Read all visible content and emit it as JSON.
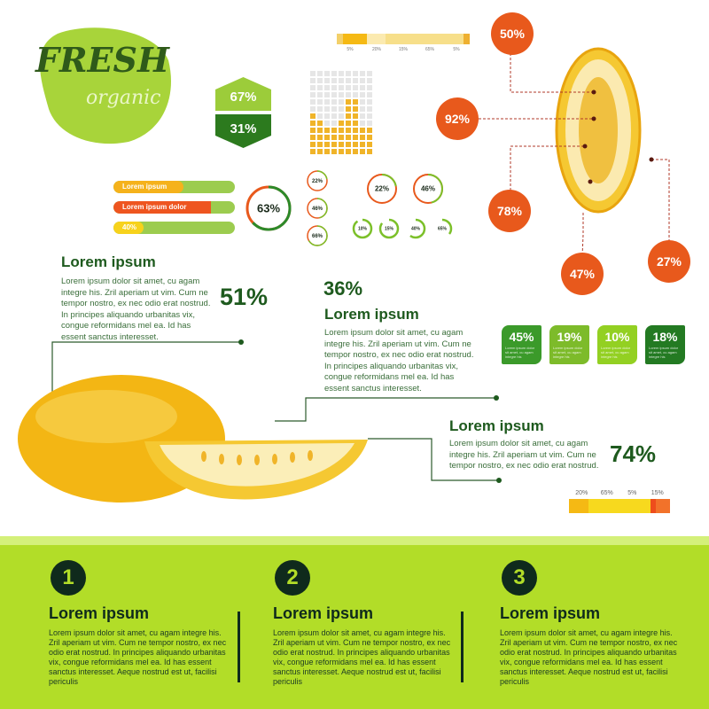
{
  "logo": {
    "title": "FRESH",
    "subtitle": "organic"
  },
  "top_bar": {
    "segments": [
      {
        "label": "5%",
        "value": 5,
        "color": "#f3d06a"
      },
      {
        "label": "20%",
        "value": 20,
        "color": "#f5b914"
      },
      {
        "label": "15%",
        "value": 15,
        "color": "#fbeab0"
      },
      {
        "label": "65%",
        "value": 65,
        "color": "#f7df8a"
      },
      {
        "label": "5%",
        "value": 5,
        "color": "#eeb031"
      }
    ]
  },
  "hexagon": {
    "top": "67%",
    "bottom": "31%"
  },
  "waffle": {
    "column_heights": [
      6,
      5,
      4,
      4,
      5,
      8,
      8,
      4,
      4
    ],
    "rows": 12,
    "color": "#f0b429",
    "empty": "#e6e6e6"
  },
  "bars": [
    {
      "label": "Lorem ipsum",
      "value": 58,
      "color": "#f5b21c"
    },
    {
      "label": "Lorem ipsum dolor",
      "value": 80,
      "color": "#ee5520"
    },
    {
      "label": "40%",
      "value": 25,
      "color": "#f7d21c"
    }
  ],
  "rings": {
    "big": {
      "label": "63%",
      "value": 63
    },
    "small_col": [
      {
        "label": "22%",
        "value": 22
      },
      {
        "label": "46%",
        "value": 46
      },
      {
        "label": "66%",
        "value": 66
      }
    ],
    "medium": [
      {
        "label": "22%",
        "value": 22
      },
      {
        "label": "46%",
        "value": 46
      }
    ],
    "small_row": [
      {
        "label": "10%",
        "value": 10
      },
      {
        "label": "15%",
        "value": 15
      },
      {
        "label": "40%",
        "value": 40
      },
      {
        "label": "65%",
        "value": 65
      }
    ]
  },
  "melon_callouts": [
    "50%",
    "92%",
    "78%",
    "47%",
    "27%"
  ],
  "section1": {
    "title": "Lorem ipsum",
    "text": "Lorem ipsum dolor sit amet, cu agam integre his. Zril aperiam ut vim. Cum ne tempor nostro, ex nec odio erat nostrud. In principes aliquando urbanitas vix, congue reformidans mel ea. Id has essent sanctus interesset.",
    "pct": "51%"
  },
  "section2": {
    "pct": "36%",
    "title": "Lorem ipsum",
    "text": "Lorem ipsum dolor sit amet, cu agam integre his. Zril aperiam ut vim. Cum ne tempor nostro, ex nec odio erat nostrud. In principes aliquando urbanitas vix, congue reformidans mel ea. Id has essent sanctus interesset."
  },
  "tags": [
    {
      "value": "45%",
      "text": "Lorem ipsum dolor sit amet, cu agam integre his",
      "color": "#3b9a2a"
    },
    {
      "value": "19%",
      "text": "Lorem ipsum dolor sit amet, cu agam integre his",
      "color": "#7dbb2a"
    },
    {
      "value": "10%",
      "text": "Lorem ipsum dolor sit amet, cu agam integre his",
      "color": "#93d022"
    },
    {
      "value": "18%",
      "text": "Lorem ipsum dolor sit amet, cu agam integre his",
      "color": "#237a22"
    }
  ],
  "section3": {
    "title": "Lorem ipsum",
    "text": "Lorem ipsum dolor sit amet, cu agam integre his. Zril aperiam ut vim. Cum ne tempor nostro, ex nec odio erat nostrud.",
    "pct": "74%"
  },
  "bottom_bar": {
    "segments": [
      {
        "label": "20%",
        "value": 20,
        "color": "#f5b914"
      },
      {
        "label": "65%",
        "value": 65,
        "color": "#f7d91e"
      },
      {
        "label": "5%",
        "value": 5,
        "color": "#ee4d1c"
      },
      {
        "label": "15%",
        "value": 15,
        "color": "#f2722a"
      }
    ]
  },
  "footer": {
    "columns": [
      {
        "num": "1",
        "title": "Lorem ipsum",
        "text": "Lorem ipsum dolor sit amet, cu agam integre his. Zril aperiam ut vim. Cum ne tempor nostro, ex nec odio erat nostrud. In principes aliquando urbanitas vix, congue reformidans mel ea. Id has essent sanctus interesset. Aeque nostrud est ut, facilisi periculis"
      },
      {
        "num": "2",
        "title": "Lorem ipsum",
        "text": "Lorem ipsum dolor sit amet, cu agam integre his. Zril aperiam ut vim. Cum ne tempor nostro, ex nec odio erat nostrud. In principes aliquando urbanitas vix, congue reformidans mel ea. Id has essent sanctus interesset. Aeque nostrud est ut, facilisi periculis"
      },
      {
        "num": "3",
        "title": "Lorem ipsum",
        "text": "Lorem ipsum dolor sit amet, cu agam integre his. Zril aperiam ut vim. Cum ne tempor nostro, ex nec odio erat nostrud. In principes aliquando urbanitas vix, congue reformidans mel ea. Id has essent sanctus interesset. Aeque nostrud est ut, facilisi periculis"
      }
    ]
  },
  "colors": {
    "dark_green": "#1e5a1e",
    "lime": "#b2dd28",
    "orange": "#e8591c",
    "melon_yellow": "#f5b914"
  }
}
